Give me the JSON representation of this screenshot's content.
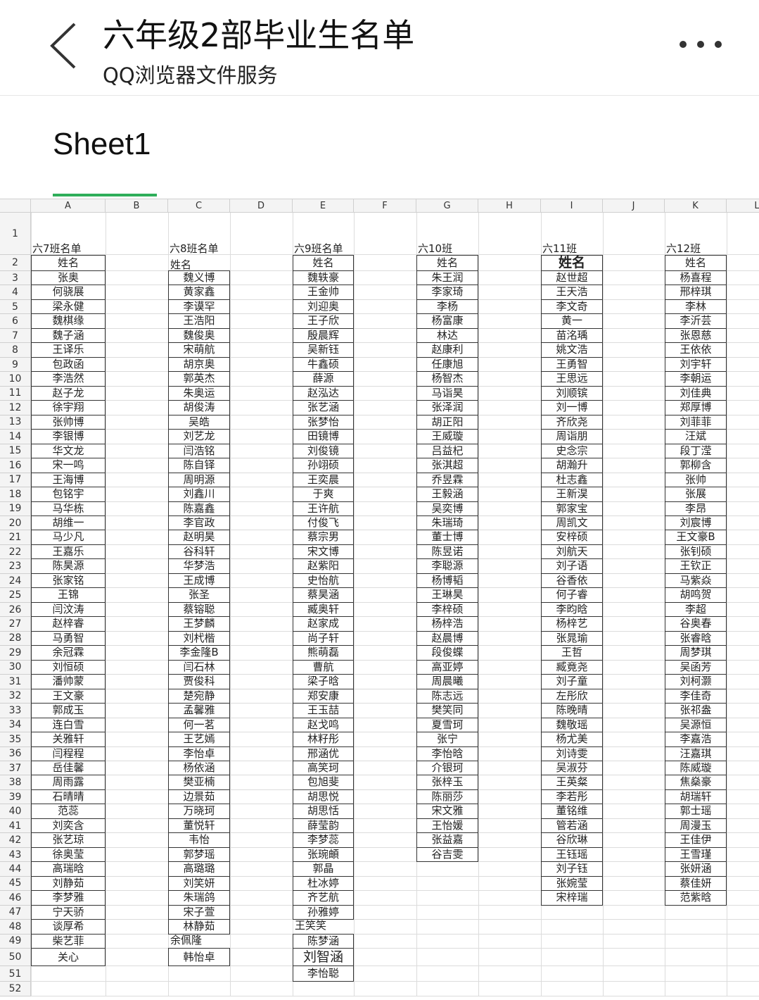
{
  "header": {
    "title": "六年级2部毕业生名单",
    "subtitle": "QQ浏览器文件服务",
    "back_icon": "chevron-left-icon",
    "more_icon": "more-dots-icon"
  },
  "sheet_tab": {
    "label": "Sheet1",
    "accent_color": "#2fae5a"
  },
  "sheet": {
    "column_letters": [
      "A",
      "B",
      "C",
      "D",
      "E",
      "F",
      "G",
      "H",
      "I",
      "J",
      "K",
      "L"
    ],
    "row_labels": [
      "1",
      "2",
      "3",
      "4",
      "5",
      "6",
      "7",
      "8",
      "9",
      "10",
      "11",
      "12",
      "13",
      "14",
      "15",
      "16",
      "17",
      "18",
      "19",
      "20",
      "21",
      "22",
      "23",
      "24",
      "25",
      "26",
      "27",
      "28",
      "29",
      "30",
      "31",
      "32",
      "33",
      "34",
      "35",
      "36",
      "37",
      "38",
      "39",
      "40",
      "41",
      "42",
      "43",
      "44",
      "45",
      "46",
      "47",
      "48",
      "49",
      "50",
      "51",
      "52"
    ],
    "classes": [
      {
        "column": "A",
        "title": "六7班名单",
        "header": "姓名",
        "names": [
          "张奥",
          "何骁展",
          "梁永健",
          "魏棋缘",
          "魏子涵",
          "王译乐",
          "包政函",
          "李浩然",
          "赵子龙",
          "徐宇翔",
          "张帅博",
          "李银博",
          "华文龙",
          "宋一鸣",
          "王海博",
          "包铭宇",
          "马华栋",
          "胡维一",
          "马少凡",
          "王嘉乐",
          "陈昊源",
          "张家铭",
          "王锦",
          "闫汶涛",
          "赵梓睿",
          "马勇智",
          "余冠霖",
          "刘恒硕",
          "潘帅蒙",
          "王文豪",
          "郭成玉",
          "连白雪",
          "关雅轩",
          "闫程程",
          "岳佳馨",
          "周雨露",
          "石晴晴",
          "范蕊",
          "刘奕含",
          "张艺琼",
          "徐奥莹",
          "高瑞晗",
          "刘静茹",
          "李梦雅",
          "宁天骄",
          "谈厚希",
          "柴艺菲",
          "关心"
        ]
      },
      {
        "column": "C",
        "title": "六8班名单",
        "header": "姓名",
        "names": [
          "魏义博",
          "黄家鑫",
          "李谟罕",
          "王浩阳",
          "魏俊奥",
          "宋萌航",
          "胡京奥",
          "郭英杰",
          "朱奥运",
          "胡俊涛",
          "吴皓",
          "刘艺龙",
          "闫浩铭",
          "陈自铎",
          "周明源",
          "刘鑫川",
          "陈嘉鑫",
          "李官政",
          "赵明昊",
          "谷科轩",
          "华梦浩",
          "王成博",
          "张圣",
          "蔡镕聪",
          "王梦麟",
          "刘杙楷",
          "李金隆B",
          "闫石林",
          "贾俊科",
          "楚宛静",
          "孟馨雅",
          "何一茗",
          "王艺嫣",
          "李怡卓",
          "杨依涵",
          "樊亚楠",
          "边景茹",
          "万晓珂",
          "董悦轩",
          "韦怡",
          "郭梦瑶",
          "高璐璐",
          "刘笑妍",
          "朱瑞鸽",
          "宋子萱",
          "林静茹",
          "余佩隆",
          "韩怡卓"
        ]
      },
      {
        "column": "E",
        "title": "六9班名单",
        "header": "姓名",
        "names": [
          "魏轶豪",
          "王金帅",
          "刘迎奥",
          "王子欣",
          "殷晨辉",
          "吴新钰",
          "牛鑫硕",
          "薛源",
          "赵泓达",
          "张艺涵",
          "张梦怡",
          "田镜博",
          "刘俊镜",
          "孙翊硕",
          "王奕晨",
          "于爽",
          "王许航",
          "付俊飞",
          "蔡宗男",
          "宋文博",
          "赵紫阳",
          "史怡航",
          "蔡昊涵",
          "臧奥轩",
          "赵家成",
          "尚子轩",
          "熊萌磊",
          "曹航",
          "梁子晗",
          "郑安康",
          "王玉喆",
          "赵戈鸣",
          "林籽彤",
          "邢涵优",
          "高笑珂",
          "包旭斐",
          "胡思悦",
          "胡思恬",
          "薛莹韵",
          "李梦蕊",
          "张琬頔",
          "郭晶",
          "杜冰婷",
          "齐艺航",
          "孙雅婷",
          "王笑笑",
          "陈梦涵",
          "刘智涵",
          "李怡聪"
        ]
      },
      {
        "column": "G",
        "title": "六10班",
        "header": "姓名",
        "names": [
          "朱王润",
          "李家琦",
          "李杨",
          "杨富康",
          "林达",
          "赵康利",
          "任康旭",
          "杨智杰",
          "马诣昊",
          "张泽润",
          "胡正阳",
          "王威璇",
          "吕益杞",
          "张淇超",
          "乔昱霖",
          "王毅涵",
          "吴奕博",
          "朱瑞琦",
          "董士博",
          "陈昱诺",
          "李聪源",
          "杨博韬",
          "王琳昊",
          "李梓硕",
          "杨梓浩",
          "赵晨博",
          "段俊蝶",
          "高亚婷",
          "周晨曦",
          "陈志远",
          "樊笑同",
          "夏雪珂",
          "张宁",
          "李怡晗",
          "介银珂",
          "张梓玉",
          "陈丽莎",
          "宋文雅",
          "王怡媛",
          "张益嘉",
          "谷吉雯"
        ]
      },
      {
        "column": "I",
        "title": "六11班",
        "header": "姓名",
        "names": [
          "赵世超",
          "王天浩",
          "李文奇",
          "黄一",
          "苗洺瑀",
          "姚文浩",
          "王勇智",
          "王思远",
          "刘顺镔",
          "刘一博",
          "齐欣尧",
          "周诣朋",
          "史念宗",
          "胡瀚升",
          "杜志鑫",
          "王新淏",
          "郭家宝",
          "周凯文",
          "安梓硕",
          "刘航天",
          "刘子语",
          "谷香依",
          "何子睿",
          "李昀晗",
          "杨梓艺",
          "张晁瑜",
          "王哲",
          "臧竟尧",
          "刘子童",
          "左彤欣",
          "陈晚晴",
          "魏敬瑶",
          "杨尤美",
          "刘诗雯",
          "吴淑芬",
          "王英粲",
          "李若彤",
          "董铭维",
          "管若涵",
          "谷欣琳",
          "王钰瑶",
          "刘子钰",
          "张婉莹",
          "宋梓瑞"
        ]
      },
      {
        "column": "K",
        "title": "六12班",
        "header": "姓名",
        "names": [
          "杨喜程",
          "邢梓琪",
          "李林",
          "李沂芸",
          "张恩慈",
          "王依依",
          "刘宇轩",
          "李朝运",
          "刘佳典",
          "郑厚博",
          "刘菲菲",
          "汪斌",
          "段丁滢",
          "郭柳含",
          "张帅",
          "张展",
          "李昂",
          "刘宸博",
          "王文豪B",
          "张钊硕",
          "王钦正",
          "马紫焱",
          "胡鸣贺",
          "李超",
          "谷奥春",
          "张睿晗",
          "周梦琪",
          "吴函芳",
          "刘柯灏",
          "李佳奇",
          "张祁盎",
          "吴源恒",
          "李嘉浩",
          "汪嘉琪",
          "陈威璇",
          "焦燊豪",
          "胡瑞轩",
          "郭士瑶",
          "周漫玉",
          "王佳伊",
          "王雪瑾",
          "张妍涵",
          "蔡佳妍",
          "范紫晗"
        ]
      }
    ]
  }
}
